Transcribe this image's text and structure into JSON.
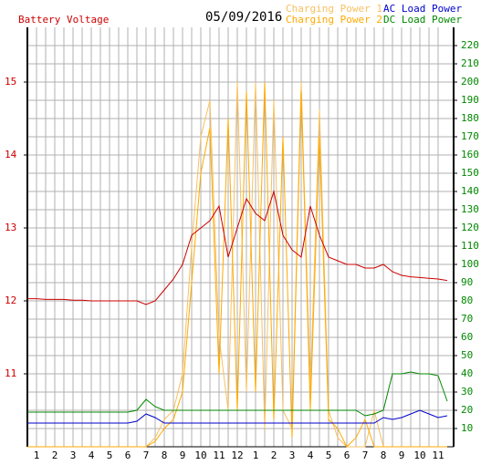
{
  "chart_data": {
    "type": "line",
    "date": "05/09/2016",
    "x": [
      0.5,
      1,
      1.5,
      2,
      2.5,
      3,
      3.5,
      4,
      4.5,
      5,
      5.5,
      6,
      6.5,
      7,
      7.5,
      8,
      8.5,
      9,
      9.5,
      10,
      10.5,
      11,
      11.5,
      12,
      12.5,
      13,
      13.5,
      14,
      14.5,
      15,
      15.5,
      16,
      16.5,
      17,
      17.5,
      18,
      18.5,
      19,
      19.5,
      20,
      20.5,
      21,
      21.5,
      22,
      22.5,
      23,
      23.5
    ],
    "xlim": [
      0.5,
      23.85
    ],
    "xticks": [
      1,
      2,
      3,
      4,
      5,
      6,
      7,
      8,
      9,
      10,
      11,
      12,
      {
        "value": 13,
        "label": "1"
      },
      {
        "value": 14,
        "label": "2"
      },
      {
        "value": 15,
        "label": "3"
      },
      {
        "value": 16,
        "label": "4"
      },
      {
        "value": 17,
        "label": "5"
      },
      {
        "value": 18,
        "label": "6"
      },
      {
        "value": 19,
        "label": "7"
      },
      {
        "value": 20,
        "label": "8"
      },
      {
        "value": 21,
        "label": "9"
      },
      {
        "value": 22,
        "label": "10"
      },
      {
        "value": 23,
        "label": "11"
      }
    ],
    "ylim": [
      10,
      15.75
    ],
    "yticks": [
      11,
      12,
      13,
      14,
      15
    ],
    "y2lim": [
      0,
      230
    ],
    "y2ticks": [
      10,
      20,
      30,
      40,
      50,
      60,
      70,
      80,
      90,
      100,
      110,
      120,
      130,
      140,
      150,
      160,
      170,
      180,
      190,
      200,
      210,
      220
    ],
    "grid": true,
    "series": [
      {
        "name": "Battery Voltage",
        "color": "#cc0000",
        "axis": "y",
        "values": [
          12.03,
          12.03,
          12.02,
          12.02,
          12.02,
          12.01,
          12.01,
          12.0,
          12.0,
          12.0,
          12.0,
          12.0,
          12.0,
          11.95,
          12.0,
          12.15,
          12.3,
          12.5,
          12.9,
          13.0,
          13.1,
          13.3,
          12.6,
          13.0,
          13.4,
          13.2,
          13.1,
          13.5,
          12.9,
          12.7,
          12.6,
          13.3,
          12.9,
          12.6,
          12.55,
          12.5,
          12.5,
          12.45,
          12.45,
          12.5,
          12.4,
          12.35,
          12.33,
          12.32,
          12.31,
          12.3,
          12.28
        ]
      },
      {
        "name": "Charging Power 1",
        "color": "#f8c060",
        "axis": "y2",
        "values": [
          0,
          0,
          0,
          0,
          0,
          0,
          0,
          0,
          0,
          0,
          0,
          0,
          0,
          0,
          5,
          15,
          20,
          40,
          110,
          170,
          190,
          60,
          20,
          200,
          30,
          200,
          10,
          190,
          20,
          10,
          200,
          30,
          185,
          20,
          5,
          0,
          0,
          0,
          20,
          0,
          0,
          0,
          0,
          0,
          0,
          0,
          0
        ]
      },
      {
        "name": "Charging Power 2",
        "color": "#ffaa00",
        "axis": "y2",
        "values": [
          0,
          0,
          0,
          0,
          0,
          0,
          0,
          0,
          0,
          0,
          0,
          0,
          0,
          0,
          3,
          10,
          15,
          30,
          90,
          150,
          175,
          40,
          180,
          20,
          195,
          30,
          200,
          15,
          170,
          5,
          195,
          20,
          170,
          15,
          10,
          0,
          5,
          15,
          0,
          0,
          0,
          0,
          0,
          0,
          0,
          0,
          0
        ]
      },
      {
        "name": "AC Load Power",
        "color": "#0000cc",
        "axis": "y2",
        "values": [
          13,
          13,
          13,
          13,
          13,
          13,
          13,
          13,
          13,
          13,
          13,
          13,
          14,
          18,
          16,
          13,
          13,
          13,
          13,
          13,
          13,
          13,
          13,
          13,
          13,
          13,
          13,
          13,
          13,
          13,
          13,
          13,
          13,
          13,
          13,
          13,
          13,
          13,
          13,
          16,
          15,
          16,
          18,
          20,
          18,
          16,
          17
        ]
      },
      {
        "name": "DC Load Power",
        "color": "#008800",
        "axis": "y2",
        "values": [
          19,
          19,
          19,
          19,
          19,
          19,
          19,
          19,
          19,
          19,
          19,
          19,
          20,
          26,
          22,
          20,
          20,
          20,
          20,
          20,
          20,
          20,
          20,
          20,
          20,
          20,
          20,
          20,
          20,
          20,
          20,
          20,
          20,
          20,
          20,
          20,
          20,
          17,
          18,
          20,
          40,
          40,
          41,
          40,
          40,
          39,
          25
        ]
      }
    ]
  }
}
